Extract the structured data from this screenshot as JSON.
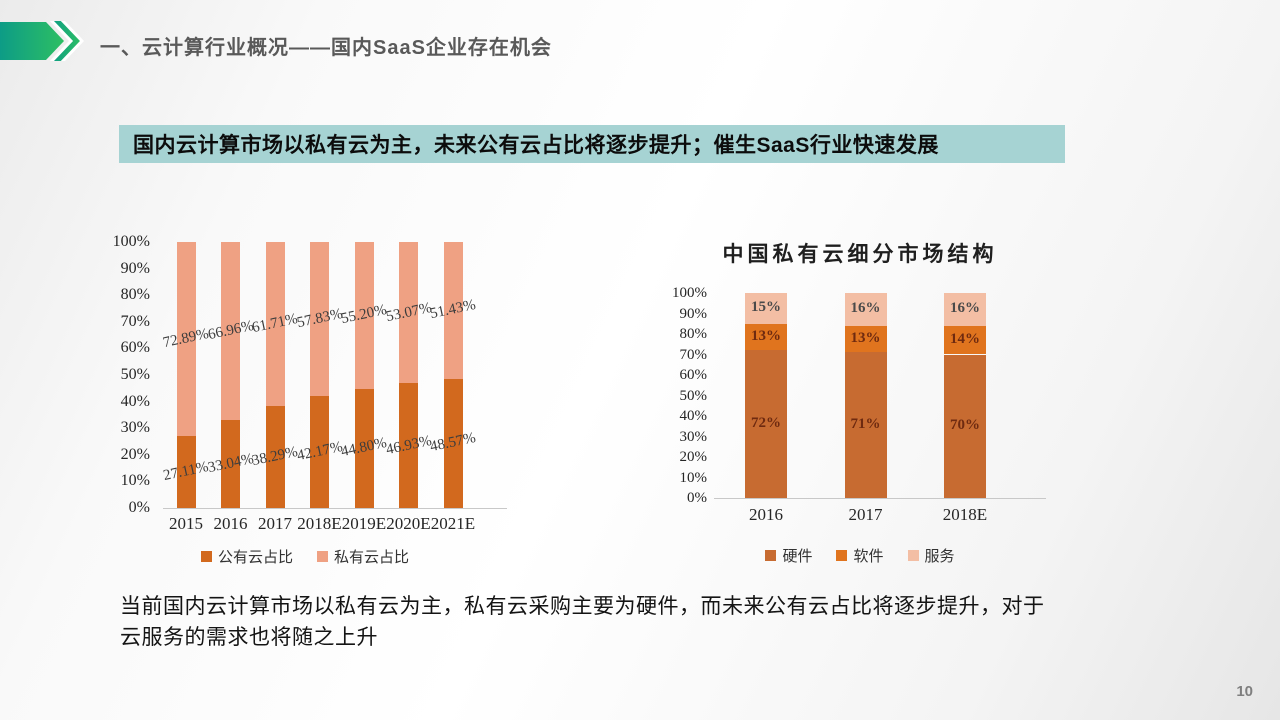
{
  "slide": {
    "header_title": "一、云计算行业概况——国内SaaS企业存在机会",
    "subtitle": "国内云计算市场以私有云为主，未来公有云占比将逐步提升；催生SaaS行业快速发展",
    "body_text": "当前国内云计算市场以私有云为主，私有云采购主要为硬件，而未来公有云占比将逐步提升，对于云服务的需求也将随之上升",
    "page_number": "10"
  },
  "colors": {
    "header_title": "#595959",
    "subtitle_bg": "#a6d3d3",
    "logo_gradient_start": "#0d9c86",
    "logo_gradient_end": "#2dbf63",
    "axis_line": "#c8c8c8"
  },
  "chart_data": [
    {
      "type": "bar",
      "stacked": true,
      "title": "",
      "categories": [
        "2015",
        "2016",
        "2017",
        "2018E",
        "2019E",
        "2020E",
        "2021E"
      ],
      "series": [
        {
          "name": "公有云占比",
          "color": "#d2691e",
          "label_color": "#3d3d3d",
          "values": [
            27.11,
            33.04,
            38.29,
            42.17,
            44.8,
            46.93,
            48.57
          ],
          "labels": [
            "27.11%",
            "33.04%",
            "38.29%",
            "42.17%",
            "44.80%",
            "46.93%",
            "48.57%"
          ]
        },
        {
          "name": "私有云占比",
          "color": "#efa183",
          "label_color": "#3d3d3d",
          "values": [
            72.89,
            66.96,
            61.71,
            57.83,
            55.2,
            53.07,
            51.43
          ],
          "labels": [
            "72.89%",
            "66.96%",
            "61.71%",
            "57.83%",
            "55.20%",
            "53.07%",
            "51.43%"
          ]
        }
      ],
      "yticks": [
        "0%",
        "10%",
        "20%",
        "30%",
        "40%",
        "50%",
        "60%",
        "70%",
        "80%",
        "90%",
        "100%"
      ],
      "ylim": [
        0,
        100
      ],
      "grid": false,
      "legend_position": "bottom",
      "label_style": "outside-rotated"
    },
    {
      "type": "bar",
      "stacked": true,
      "title": "中国私有云细分市场结构",
      "categories": [
        "2016",
        "2017",
        "2018E"
      ],
      "series": [
        {
          "name": "硬件",
          "color": "#c76b31",
          "label_color": "#6e2a10",
          "values": [
            72,
            71,
            70
          ],
          "labels": [
            "72%",
            "71%",
            "70%"
          ]
        },
        {
          "name": "软件",
          "color": "#e0741e",
          "label_color": "#6e2a10",
          "values": [
            13,
            13,
            14
          ],
          "labels": [
            "13%",
            "13%",
            "14%"
          ]
        },
        {
          "name": "服务",
          "color": "#f3bea4",
          "label_color": "#4a4a4a",
          "values": [
            15,
            16,
            16
          ],
          "labels": [
            "15%",
            "16%",
            "16%"
          ]
        }
      ],
      "yticks": [
        "0%",
        "10%",
        "20%",
        "30%",
        "40%",
        "50%",
        "60%",
        "70%",
        "80%",
        "90%",
        "100%"
      ],
      "ylim": [
        0,
        100
      ],
      "grid": false,
      "legend_position": "bottom",
      "label_style": "inside"
    }
  ]
}
